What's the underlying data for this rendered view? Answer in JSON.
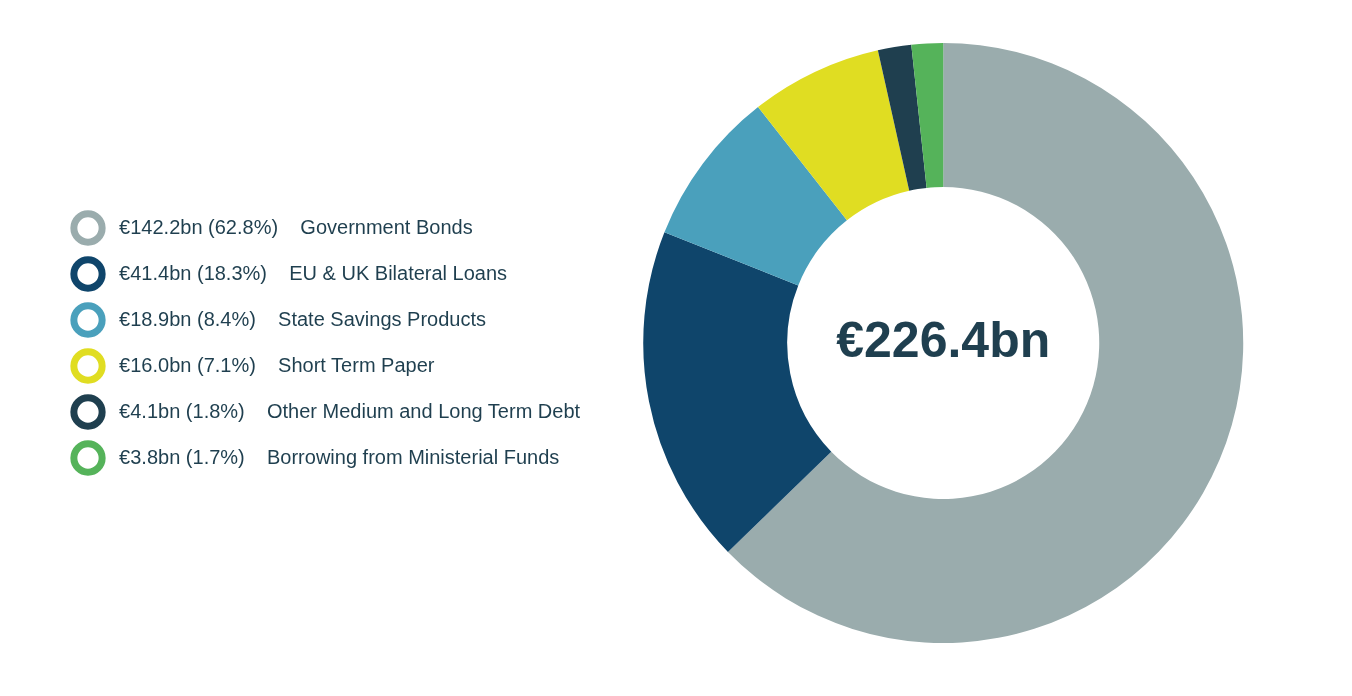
{
  "chart_data": {
    "type": "donut",
    "categories": [
      "Government Bonds",
      "EU & UK Bilateral Loans",
      "State Savings Products",
      "Short Term Paper",
      "Other Medium and Long Term Debt",
      "Borrowing from Ministerial Funds"
    ],
    "values": [
      62.8,
      18.3,
      8.4,
      7.1,
      1.8,
      1.7
    ],
    "value_labels": [
      "€142.2bn (62.8%)",
      "€41.4bn (18.3%)",
      "€18.9bn (8.4%)",
      "€16.0bn (7.1%)",
      "€4.1bn (1.8%)",
      "€3.8bn (1.7%)"
    ],
    "colors": [
      "#9aacad",
      "#0f456b",
      "#4aa0bc",
      "#e0dd22",
      "#1f3f4f",
      "#55b35a"
    ],
    "annotations": [
      "€226.4bn"
    ],
    "legend": "left"
  }
}
